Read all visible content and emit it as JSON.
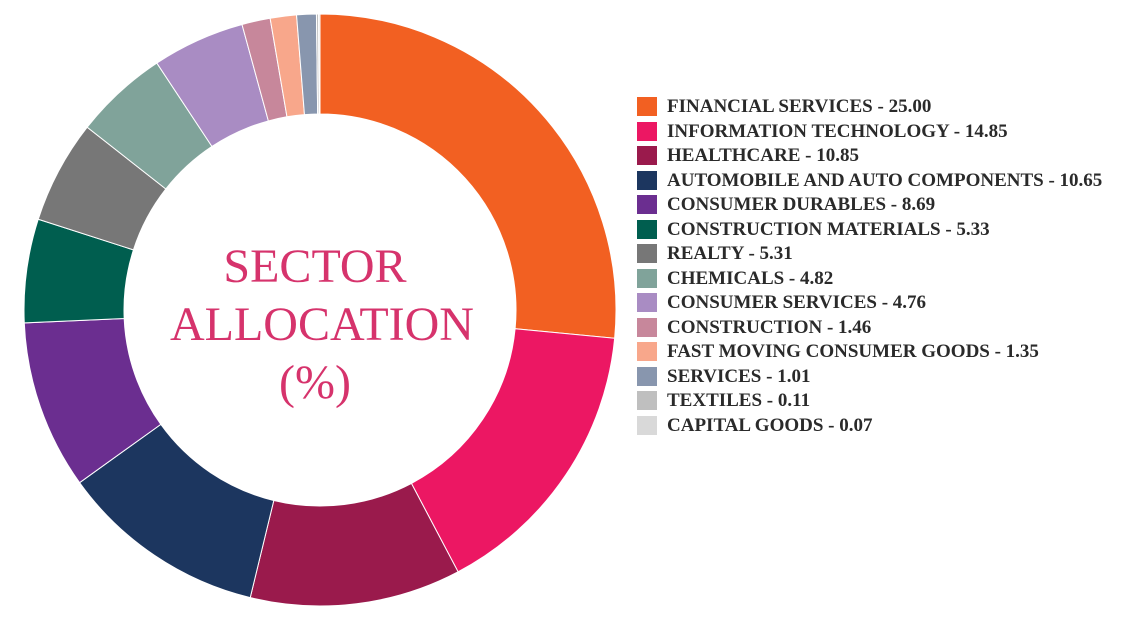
{
  "chart_data": {
    "type": "pie",
    "title": "SECTOR ALLOCATION (%)",
    "title_lines": [
      "SECTOR",
      "ALLOCATION",
      "(%)"
    ],
    "legend_position": "right",
    "slices": [
      {
        "label": "FINANCIAL SERVICES - 25.00",
        "value": 25.0,
        "color": "#f26022"
      },
      {
        "label": "INFORMATION TECHNOLOGY - 14.85",
        "value": 14.85,
        "color": "#ec1763"
      },
      {
        "label": "HEALTHCARE - 10.85",
        "value": 10.85,
        "color": "#9a1a4c"
      },
      {
        "label": "AUTOMOBILE AND AUTO COMPONENTS - 10.65",
        "value": 10.65,
        "color": "#1c365f"
      },
      {
        "label": "CONSUMER DURABLES - 8.69",
        "value": 8.69,
        "color": "#6b2e90"
      },
      {
        "label": "CONSTRUCTION MATERIALS - 5.33",
        "value": 5.33,
        "color": "#005e4f"
      },
      {
        "label": "REALTY - 5.31",
        "value": 5.31,
        "color": "#777777"
      },
      {
        "label": "CHEMICALS - 4.82",
        "value": 4.82,
        "color": "#80a39a"
      },
      {
        "label": "CONSUMER SERVICES - 4.76",
        "value": 4.76,
        "color": "#a98cc3"
      },
      {
        "label": "CONSTRUCTION - 1.46",
        "value": 1.46,
        "color": "#c7879b"
      },
      {
        "label": "FAST MOVING CONSUMER GOODS - 1.35",
        "value": 1.35,
        "color": "#f8a78b"
      },
      {
        "label": "SERVICES - 1.01",
        "value": 1.01,
        "color": "#8896ae"
      },
      {
        "label": "TEXTILES - 0.11",
        "value": 0.11,
        "color": "#bfbfbf"
      },
      {
        "label": "CAPITAL GOODS - 0.07",
        "value": 0.07,
        "color": "#d9d9d9"
      }
    ]
  }
}
